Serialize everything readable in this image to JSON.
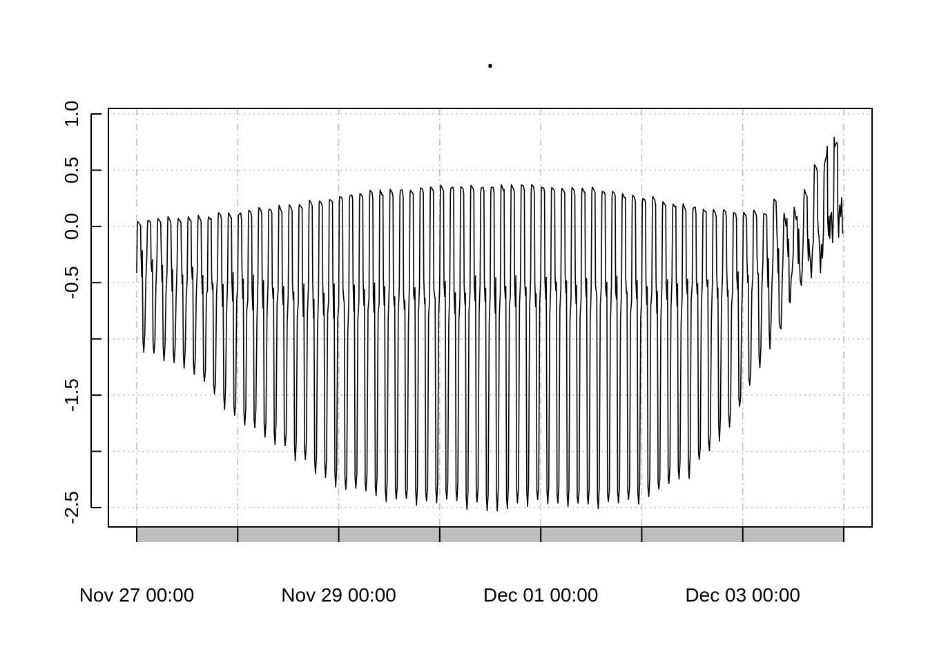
{
  "chart_data": {
    "type": "line",
    "title": ".",
    "xlabel": "",
    "ylabel": "",
    "ylim": [
      -2.55,
      1.2
    ],
    "xlim": [
      "2023-11-27 00:00",
      "2023-12-04 00:00"
    ],
    "y_ticks": [
      1.0,
      0.5,
      0.0,
      -0.5,
      -1.0,
      -1.5,
      -2.0,
      -2.5
    ],
    "y_tick_labels": [
      "1.0",
      "0.5",
      "0.0",
      "-0.5",
      "",
      "-1.5",
      "",
      "-2.5"
    ],
    "x_gridlines": [
      "2023-11-27 00:00",
      "2023-11-28 00:00",
      "2023-11-29 00:00",
      "2023-11-30 00:00",
      "2023-12-01 00:00",
      "2023-12-02 00:00",
      "2023-12-03 00:00",
      "2023-12-04 00:00"
    ],
    "x_tick_labels": [
      {
        "x": "2023-11-27 00:00",
        "label": "Nov 27 00:00"
      },
      {
        "x": "2023-11-29 00:00",
        "label": "Nov 29 00:00"
      },
      {
        "x": "2023-12-01 00:00",
        "label": "Dec 01 00:00"
      },
      {
        "x": "2023-12-03 00:00",
        "label": "Dec 03 00:00"
      }
    ],
    "grid": true,
    "legend": "none",
    "colors": {
      "line": "#000000",
      "grid": "#bebebe",
      "period_bar": "#bebebe"
    },
    "series": [
      {
        "oscillation": "regular up/down cycles, about 10 per day",
        "x_start": "2023-11-27 00:00",
        "x_end": "2023-12-03 23:59",
        "upper_envelope": [
          {
            "x": "2023-11-27 00:00",
            "y": 0.05
          },
          {
            "x": "2023-11-27 12:00",
            "y": 0.08
          },
          {
            "x": "2023-11-28 00:00",
            "y": 0.12
          },
          {
            "x": "2023-11-28 12:00",
            "y": 0.18
          },
          {
            "x": "2023-11-29 00:00",
            "y": 0.27
          },
          {
            "x": "2023-11-29 12:00",
            "y": 0.32
          },
          {
            "x": "2023-11-30 00:00",
            "y": 0.35
          },
          {
            "x": "2023-11-30 12:00",
            "y": 0.36
          },
          {
            "x": "2023-12-01 00:00",
            "y": 0.36
          },
          {
            "x": "2023-12-01 12:00",
            "y": 0.34
          },
          {
            "x": "2023-12-02 00:00",
            "y": 0.27
          },
          {
            "x": "2023-12-02 12:00",
            "y": 0.18
          },
          {
            "x": "2023-12-03 00:00",
            "y": 0.12
          },
          {
            "x": "2023-12-03 12:00",
            "y": 0.15
          },
          {
            "x": "2023-12-03 23:59",
            "y": 0.9
          }
        ],
        "lower_envelope": [
          {
            "x": "2023-11-27 00:00",
            "y": -1.1
          },
          {
            "x": "2023-11-27 12:00",
            "y": -1.25
          },
          {
            "x": "2023-11-28 00:00",
            "y": -1.7
          },
          {
            "x": "2023-11-28 12:00",
            "y": -2.0
          },
          {
            "x": "2023-11-29 00:00",
            "y": -2.3
          },
          {
            "x": "2023-11-29 12:00",
            "y": -2.45
          },
          {
            "x": "2023-11-30 00:00",
            "y": -2.45
          },
          {
            "x": "2023-11-30 12:00",
            "y": -2.5
          },
          {
            "x": "2023-12-01 00:00",
            "y": -2.45
          },
          {
            "x": "2023-12-01 12:00",
            "y": -2.5
          },
          {
            "x": "2023-12-02 00:00",
            "y": -2.45
          },
          {
            "x": "2023-12-02 12:00",
            "y": -2.2
          },
          {
            "x": "2023-12-03 00:00",
            "y": -1.6
          },
          {
            "x": "2023-12-03 12:00",
            "y": -0.6
          },
          {
            "x": "2023-12-03 23:59",
            "y": 0.05
          }
        ],
        "mid_cluster": [
          {
            "x": "2023-11-27 00:00",
            "y": -0.3
          },
          {
            "x": "2023-11-28 00:00",
            "y": -0.55
          },
          {
            "x": "2023-11-29 00:00",
            "y": -0.65
          },
          {
            "x": "2023-11-30 00:00",
            "y": -0.6
          },
          {
            "x": "2023-12-01 00:00",
            "y": -0.55
          },
          {
            "x": "2023-12-02 00:00",
            "y": -0.6
          },
          {
            "x": "2023-12-03 00:00",
            "y": -0.5
          },
          {
            "x": "2023-12-03 23:59",
            "y": 0.1
          }
        ]
      }
    ]
  }
}
